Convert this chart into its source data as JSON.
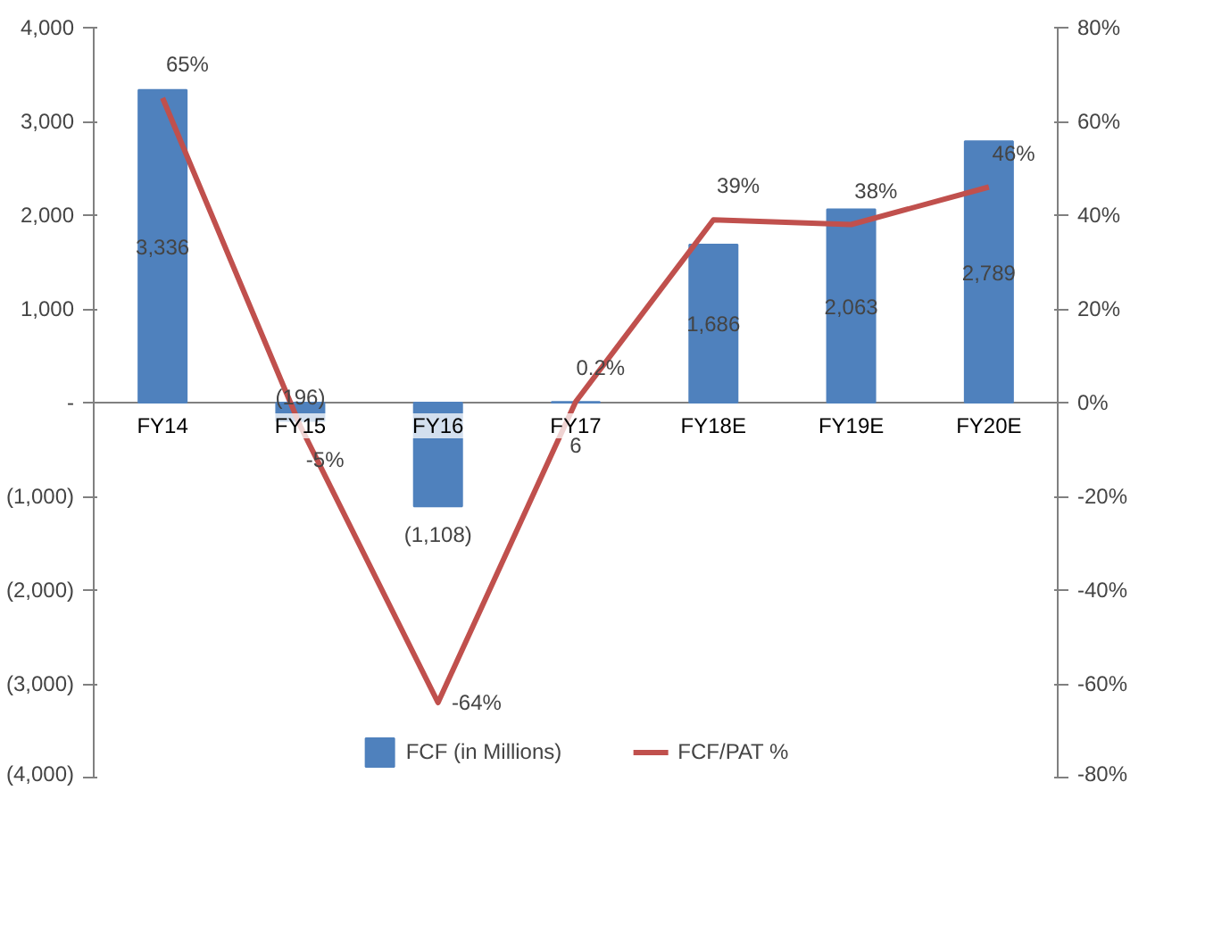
{
  "chart_data": {
    "type": "bar",
    "categories": [
      "FY14",
      "FY15",
      "FY16",
      "FY17",
      "FY18E",
      "FY19E",
      "FY20E"
    ],
    "series": [
      {
        "name": "FCF (in Millions)",
        "color": "#4f81bd",
        "values": [
          3336,
          -196,
          -1108,
          6,
          1686,
          2063,
          2789
        ],
        "value_labels": [
          "3,336",
          "(196)",
          "(1,108)",
          "6",
          "1,686",
          "2,063",
          "2,789"
        ]
      },
      {
        "name": "FCF/PAT %",
        "type": "line",
        "axis": "y2",
        "color": "#c0504d",
        "values": [
          65,
          -5,
          -64,
          0.2,
          39,
          38,
          46
        ],
        "value_labels": [
          "65%",
          "-5%",
          "-64%",
          "0.2%",
          "39%",
          "38%",
          "46%"
        ]
      }
    ],
    "ylim": [
      -4000,
      4000
    ],
    "yticks": [
      {
        "value": -4000,
        "label": "(4,000)"
      },
      {
        "value": -3000,
        "label": "(3,000)"
      },
      {
        "value": -2000,
        "label": "(2,000)"
      },
      {
        "value": -1000,
        "label": "(1,000)"
      },
      {
        "value": 0,
        "label": "-"
      },
      {
        "value": 1000,
        "label": "1,000"
      },
      {
        "value": 2000,
        "label": "2,000"
      },
      {
        "value": 3000,
        "label": "3,000"
      },
      {
        "value": 4000,
        "label": "4,000"
      }
    ],
    "y2lim": [
      -80,
      80
    ],
    "y2ticks": [
      {
        "value": -80,
        "label": "-80%"
      },
      {
        "value": -60,
        "label": "-60%"
      },
      {
        "value": -40,
        "label": "-40%"
      },
      {
        "value": -20,
        "label": "-20%"
      },
      {
        "value": 0,
        "label": "0%"
      },
      {
        "value": 20,
        "label": "20%"
      },
      {
        "value": 40,
        "label": "40%"
      },
      {
        "value": 60,
        "label": "60%"
      },
      {
        "value": 80,
        "label": "80%"
      }
    ],
    "grid": false,
    "legend": "bottom"
  }
}
